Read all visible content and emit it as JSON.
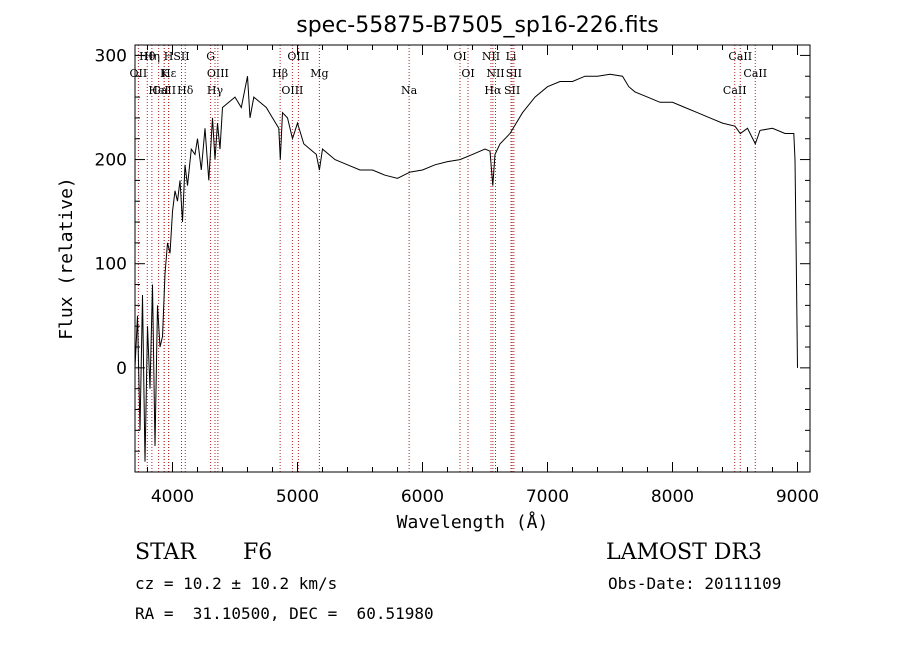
{
  "chart_data": {
    "type": "line",
    "title": "spec-55875-B7505_sp16-226.fits",
    "xlabel": "Wavelength (Å)",
    "ylabel": "Flux (relative)",
    "xlim": [
      3700,
      9100
    ],
    "ylim": [
      -100,
      310
    ],
    "xticks": [
      4000,
      5000,
      6000,
      7000,
      8000,
      9000
    ],
    "yticks": [
      0,
      100,
      200,
      300
    ],
    "grid": false,
    "line_color": "#000000",
    "marker_color": "#b22222",
    "series": [
      {
        "x": [
          3700,
          3720,
          3740,
          3760,
          3780,
          3800,
          3820,
          3840,
          3860,
          3880,
          3900,
          3920,
          3940,
          3960,
          3980,
          4000,
          4020,
          4040,
          4060,
          4080,
          4100,
          4120,
          4150,
          4180,
          4200,
          4230,
          4260,
          4290,
          4320,
          4340,
          4360,
          4380,
          4400,
          4450,
          4500,
          4550,
          4600,
          4620,
          4650,
          4700,
          4750,
          4800,
          4850,
          4862,
          4880,
          4920,
          4960,
          5000,
          5050,
          5100,
          5150,
          5175,
          5200,
          5250,
          5300,
          5400,
          5500,
          5600,
          5700,
          5800,
          5900,
          6000,
          6100,
          6200,
          6300,
          6400,
          6500,
          6540,
          6562,
          6580,
          6620,
          6700,
          6800,
          6900,
          7000,
          7100,
          7200,
          7300,
          7400,
          7500,
          7600,
          7650,
          7700,
          7800,
          7900,
          8000,
          8100,
          8200,
          8300,
          8400,
          8500,
          8542,
          8600,
          8662,
          8700,
          8800,
          8900,
          8970,
          8980,
          8990,
          9000
        ],
        "y": [
          0,
          50,
          -60,
          70,
          -90,
          40,
          -20,
          80,
          -75,
          60,
          20,
          30,
          90,
          120,
          110,
          150,
          170,
          160,
          180,
          140,
          195,
          175,
          210,
          205,
          220,
          190,
          230,
          180,
          240,
          200,
          235,
          210,
          250,
          255,
          260,
          250,
          280,
          240,
          260,
          255,
          250,
          240,
          230,
          200,
          245,
          240,
          220,
          235,
          215,
          210,
          205,
          190,
          210,
          205,
          200,
          195,
          190,
          190,
          185,
          182,
          188,
          190,
          195,
          198,
          200,
          205,
          210,
          208,
          175,
          205,
          215,
          225,
          245,
          260,
          270,
          275,
          275,
          280,
          280,
          282,
          280,
          270,
          265,
          260,
          255,
          255,
          250,
          245,
          240,
          235,
          232,
          225,
          230,
          215,
          228,
          230,
          225,
          225,
          200,
          100,
          0
        ]
      }
    ],
    "lines": [
      {
        "label": "Hθ",
        "wavelength": 3798
      },
      {
        "label": "OII",
        "wavelength": 3727
      },
      {
        "label": "CaII",
        "wavelength": 3934
      },
      {
        "label": "Hη",
        "wavelength": 3835
      },
      {
        "label": "K",
        "wavelength": 3933
      },
      {
        "label": "HeI",
        "wavelength": 3889
      },
      {
        "label": "H",
        "wavelength": 3968
      },
      {
        "label": "Hε",
        "wavelength": 3970
      },
      {
        "label": "Hδ",
        "wavelength": 4102
      },
      {
        "label": "SII",
        "wavelength": 4072
      },
      {
        "label": "OIII",
        "wavelength": 4363
      },
      {
        "label": "Hγ",
        "wavelength": 4340
      },
      {
        "label": "G",
        "wavelength": 4305
      },
      {
        "label": "Hβ",
        "wavelength": 4861
      },
      {
        "label": "OIII",
        "wavelength": 4959
      },
      {
        "label": "OIII",
        "wavelength": 5007
      },
      {
        "label": "Mg",
        "wavelength": 5175
      },
      {
        "label": "Na",
        "wavelength": 5893
      },
      {
        "label": "OI",
        "wavelength": 6300
      },
      {
        "label": "OI",
        "wavelength": 6364
      },
      {
        "label": "Hα",
        "wavelength": 6563
      },
      {
        "label": "NII",
        "wavelength": 6548
      },
      {
        "label": "NII",
        "wavelength": 6584
      },
      {
        "label": "SII",
        "wavelength": 6717
      },
      {
        "label": "Li",
        "wavelength": 6708
      },
      {
        "label": "SII",
        "wavelength": 6731
      },
      {
        "label": "CaII",
        "wavelength": 8498
      },
      {
        "label": "CaII",
        "wavelength": 8542
      },
      {
        "label": "CaII",
        "wavelength": 8662
      }
    ]
  },
  "info": {
    "class": "STAR",
    "subclass": "F6",
    "survey": "LAMOST DR3",
    "cz": "cz = 10.2 ± 10.2 km/s",
    "obsdate": "Obs-Date: 20111109",
    "radec": "RA =  31.10500, DEC =  60.51980"
  }
}
